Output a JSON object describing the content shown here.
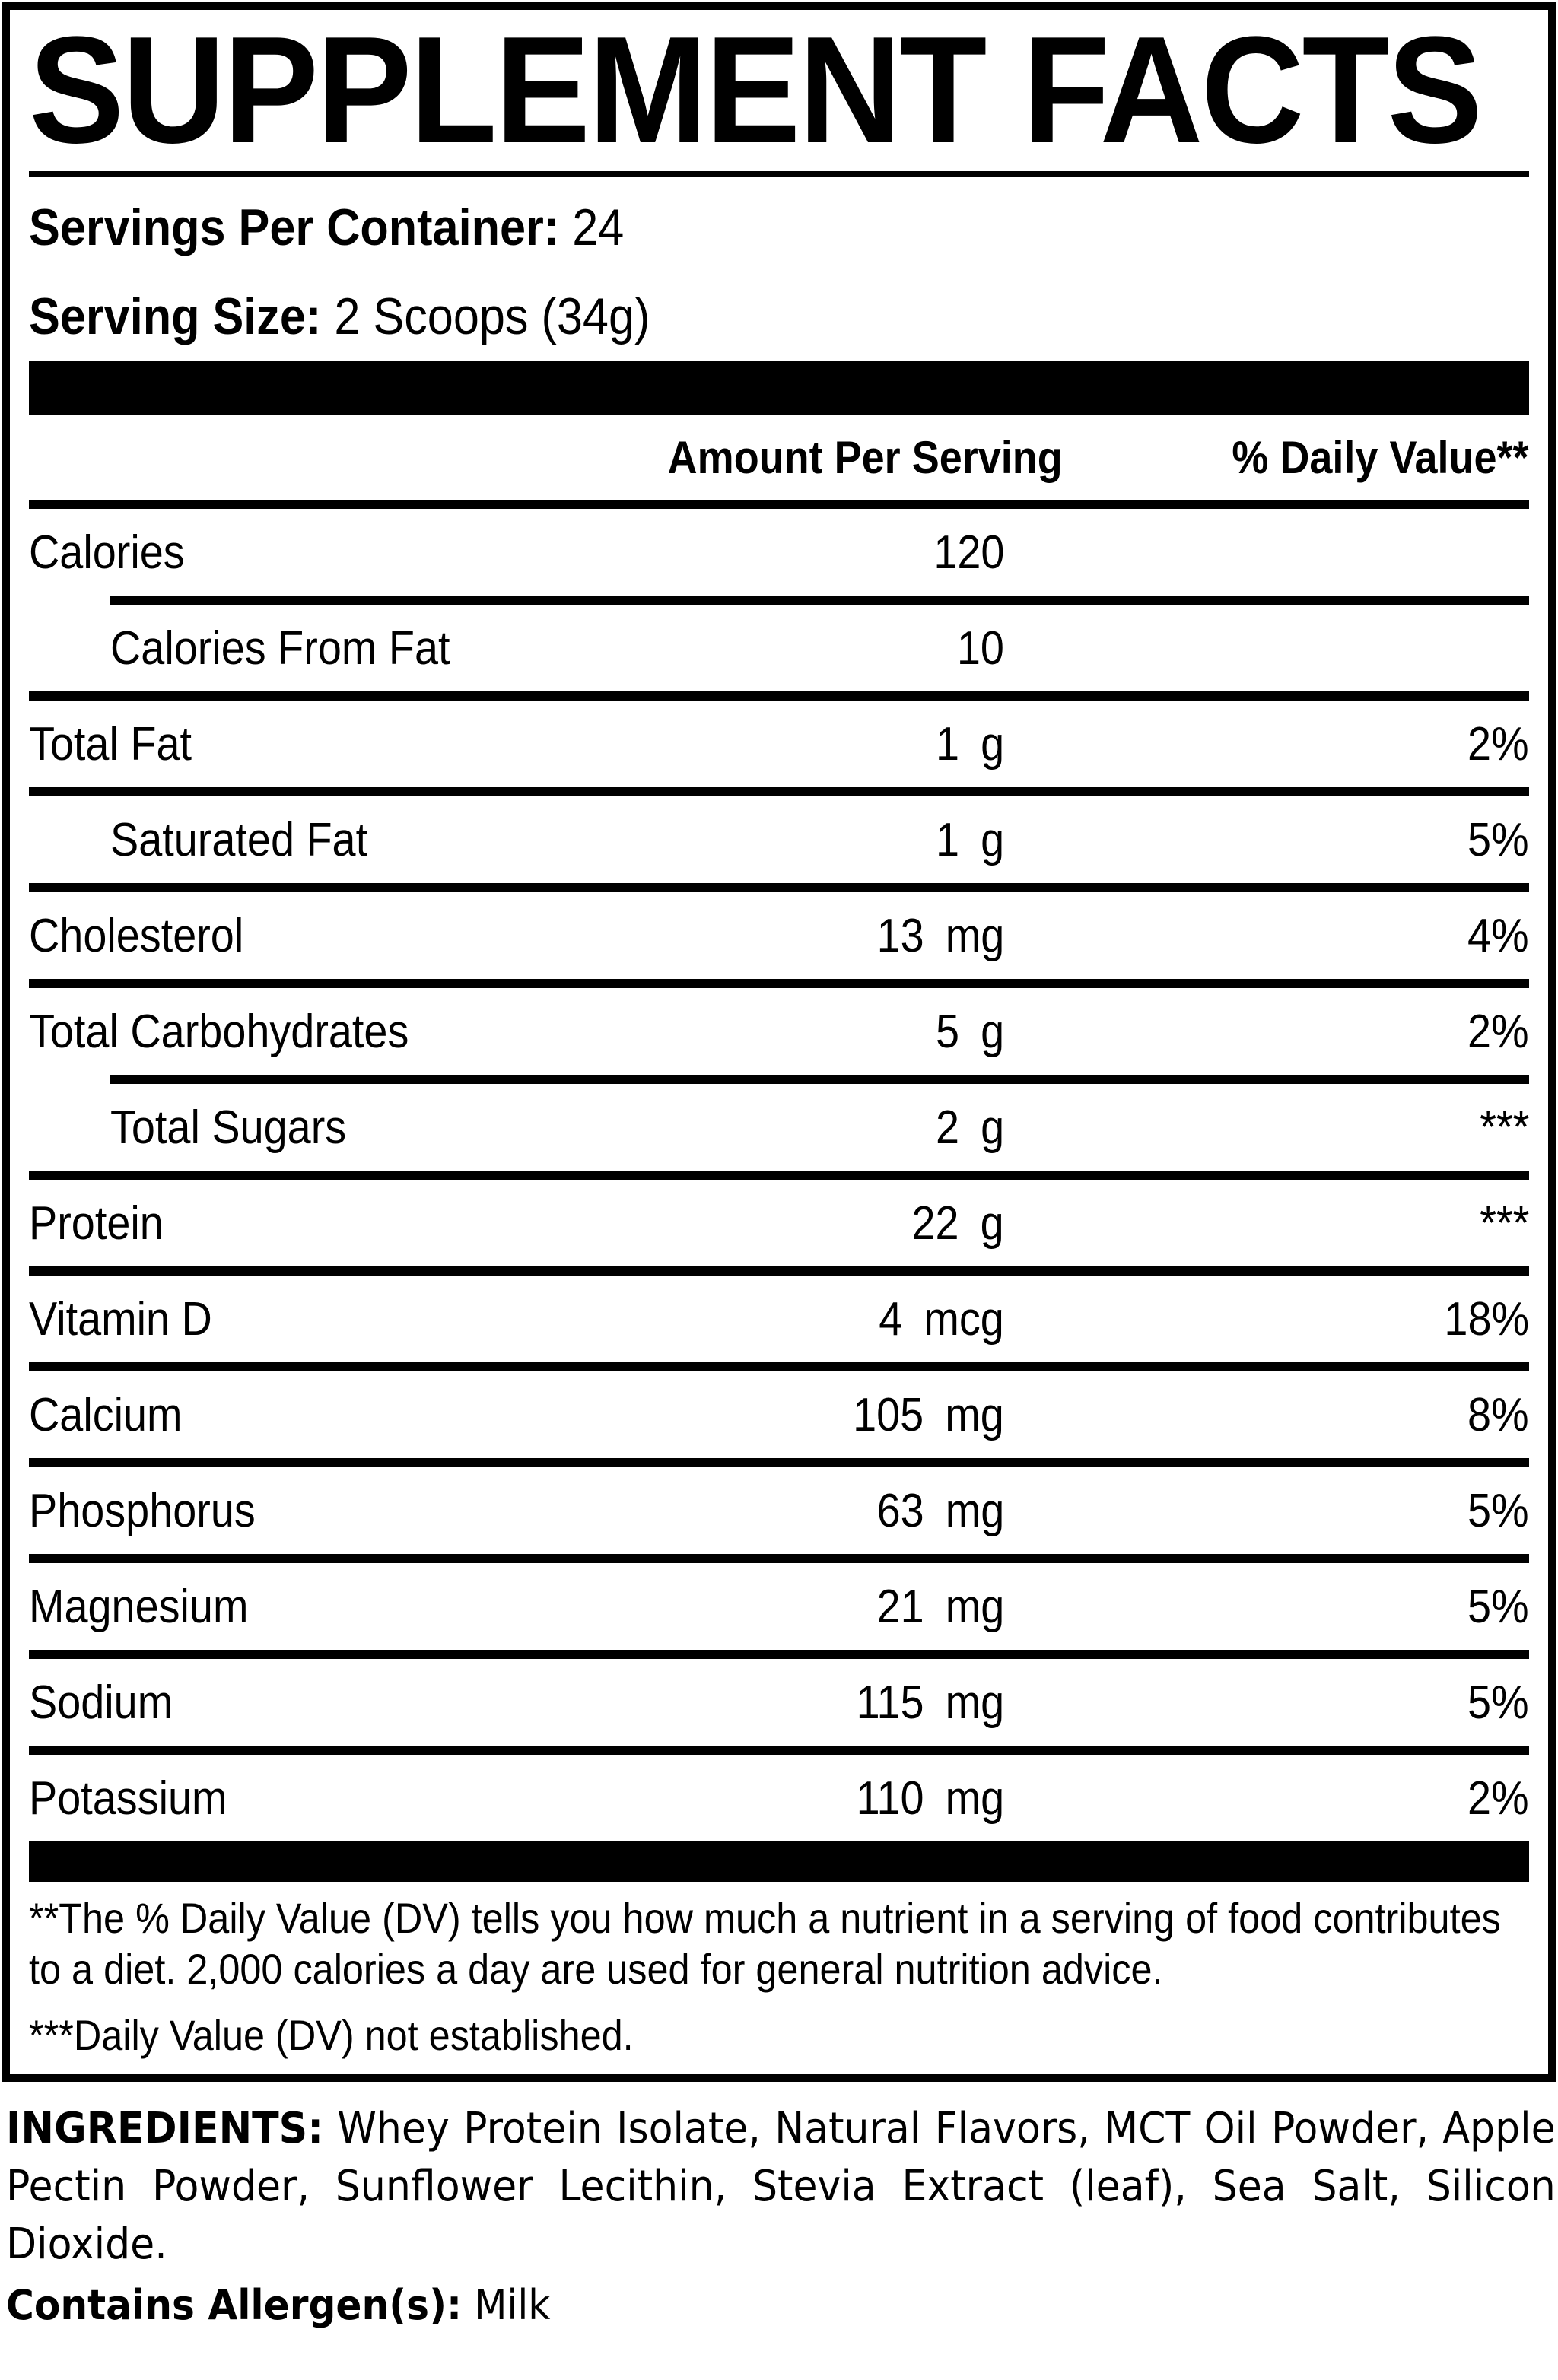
{
  "colors": {
    "ink": "#000000",
    "background": "#ffffff"
  },
  "label": {
    "title": "SUPPLEMENT FACTS",
    "servings_per_container_label": "Servings Per Container:",
    "servings_per_container_value": "24",
    "serving_size_label": "Serving Size:",
    "serving_size_value": "2 Scoops (34g)",
    "header": {
      "amount": "Amount Per Serving",
      "dv": "% Daily Value**"
    },
    "rows": [
      {
        "label": "Calories",
        "amount": "120",
        "dv": ""
      },
      {
        "label": "Calories From Fat",
        "amount": "10",
        "dv": ""
      },
      {
        "label": "Total Fat",
        "amount": "1 g",
        "dv": "2%"
      },
      {
        "label": "Saturated Fat",
        "amount": "1 g",
        "dv": "5%"
      },
      {
        "label": "Cholesterol",
        "amount": "13 mg",
        "dv": "4%"
      },
      {
        "label": "Total Carbohydrates",
        "amount": "5 g",
        "dv": "2%"
      },
      {
        "label": "Total Sugars",
        "amount": "2 g",
        "dv": "***"
      },
      {
        "label": "Protein",
        "amount": "22 g",
        "dv": "***"
      },
      {
        "label": "Vitamin D",
        "amount": "4 mcg",
        "dv": "18%"
      },
      {
        "label": "Calcium",
        "amount": "105 mg",
        "dv": "8%"
      },
      {
        "label": "Phosphorus",
        "amount": "63 mg",
        "dv": "5%"
      },
      {
        "label": "Magnesium",
        "amount": "21 mg",
        "dv": "5%"
      },
      {
        "label": "Sodium",
        "amount": "115 mg",
        "dv": "5%"
      },
      {
        "label": "Potassium",
        "amount": "110 mg",
        "dv": "2%"
      }
    ],
    "footnote_dv": "**The % Daily Value (DV) tells you how much a nutrient in a serving of food contributes to a diet. 2,000 calories a day are used for general nutrition advice.",
    "footnote_not_established": "***Daily Value (DV) not established."
  },
  "ingredients": {
    "label": "INGREDIENTS:",
    "text": " Whey Protein Isolate, Natural Flavors, MCT Oil Powder, Apple Pectin Powder, Sunflower Lecithin, Stevia Extract (leaf), Sea Salt, Silicon Dioxide.",
    "allergen_label": "Contains Allergen(s):",
    "allergen_value": " Milk"
  }
}
